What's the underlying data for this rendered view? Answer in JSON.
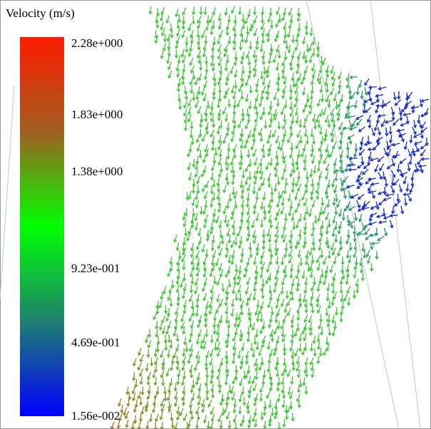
{
  "legend": {
    "title": "Velocity (m/s)",
    "labels": [
      "2.28e+000",
      "1.83e+000",
      "1.38e+000",
      "9.23e-001",
      "4.69e-001",
      "1.56e-002"
    ]
  }
}
